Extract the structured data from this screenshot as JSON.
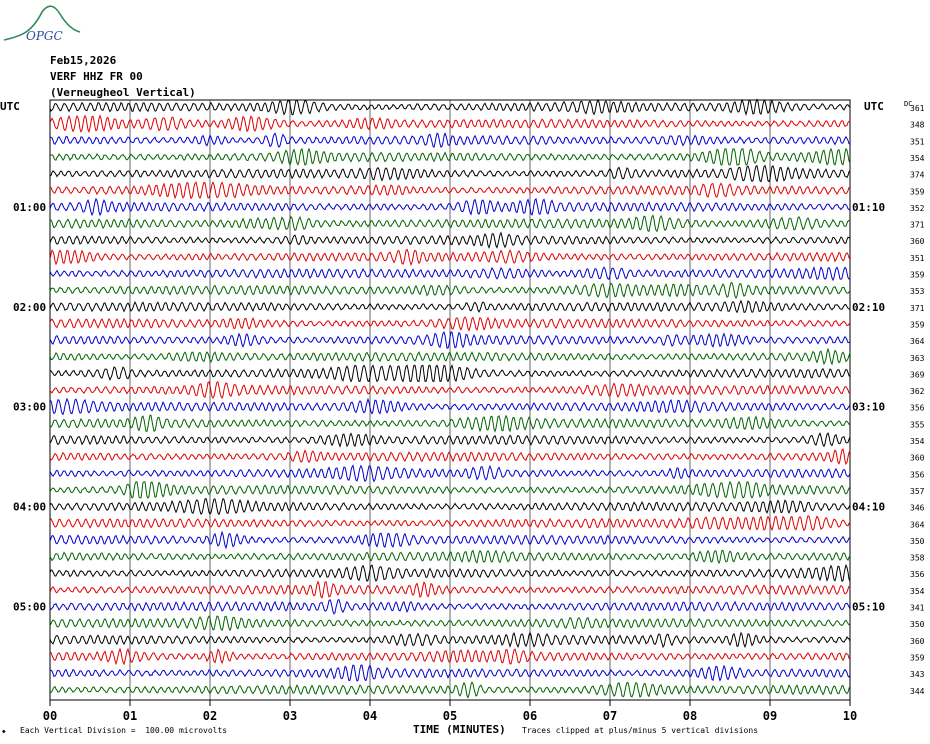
{
  "logo_text": "OPGC",
  "header": {
    "date": "Feb15,2026",
    "station": "VERF HHZ FR 00",
    "location": "(Verneugheol Vertical)"
  },
  "utc_left": "UTC",
  "utc_right": "UTC",
  "dc_label": "DC",
  "footer": {
    "scale_note": "Each Vertical Division =  100.00 microvolts",
    "clip_note": "Traces clipped at plus/minus 5 vertical divisions"
  },
  "colors": [
    "#000000",
    "#e00000",
    "#0000d0",
    "#006400"
  ],
  "chart_data": {
    "type": "line",
    "xlabel": "TIME (MINUTES)",
    "x_ticks": [
      "00",
      "01",
      "02",
      "03",
      "04",
      "05",
      "06",
      "07",
      "08",
      "09",
      "10"
    ],
    "xlim": [
      0,
      10
    ],
    "left_time_labels": [
      "01:00",
      "02:00",
      "03:00",
      "04:00",
      "05:00"
    ],
    "right_time_labels": [
      "01:10",
      "02:10",
      "03:10",
      "04:10",
      "05:10"
    ],
    "time_label_rows": [
      6,
      12,
      18,
      24,
      30
    ],
    "dc_offsets": [
      361,
      348,
      351,
      354,
      374,
      359,
      352,
      371,
      360,
      351,
      359,
      353,
      371,
      359,
      364,
      363,
      369,
      362,
      356,
      355,
      354,
      360,
      356,
      357,
      346,
      364,
      350,
      358,
      356,
      354,
      341,
      350,
      360,
      359,
      343,
      344
    ],
    "grid": true
  }
}
